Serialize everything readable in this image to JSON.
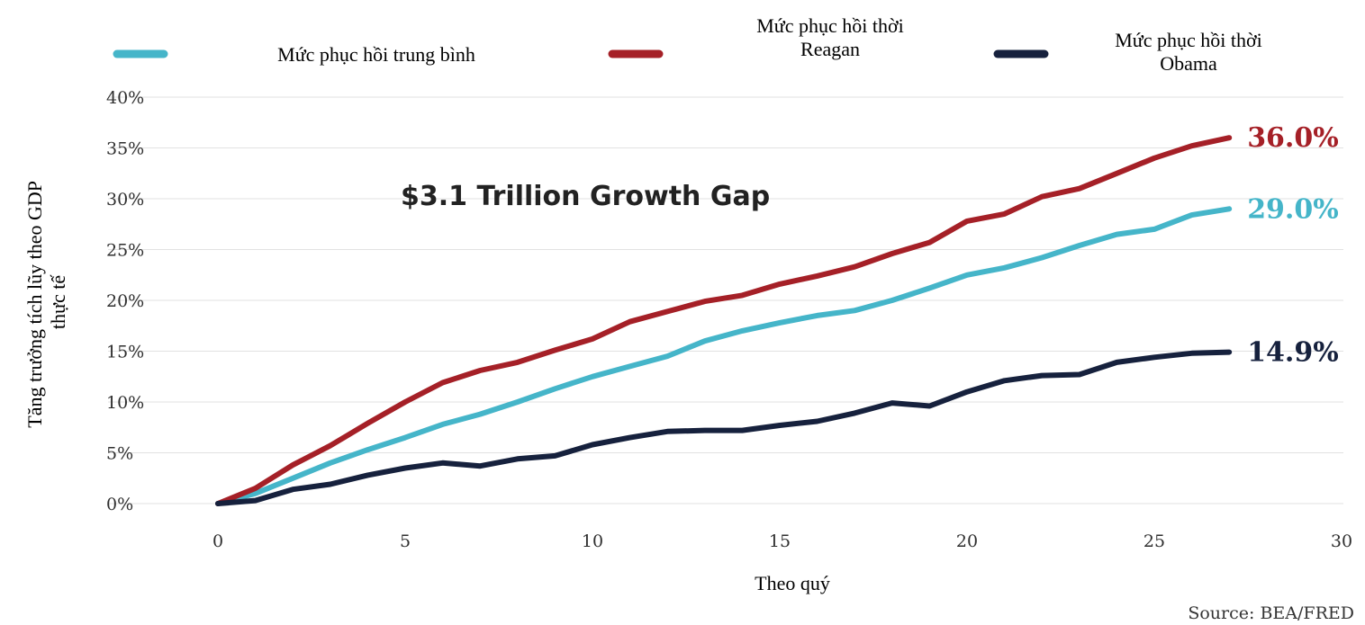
{
  "chart_data": {
    "type": "line",
    "annotation": "$3.1 Trillion Growth Gap",
    "xlabel": "Theo quý",
    "ylabel": [
      "Tăng trưởng tích lũy theo GDP",
      "thực tế"
    ],
    "source": "Source: BEA/FRED",
    "xlim": [
      0,
      30
    ],
    "ylim": [
      0,
      40
    ],
    "x_ticks": [
      0,
      5,
      10,
      15,
      20,
      25,
      30
    ],
    "x_tick_labels": [
      "0",
      "5",
      "10",
      "15",
      "20",
      "25",
      "30"
    ],
    "y_ticks": [
      0,
      5,
      10,
      15,
      20,
      25,
      30,
      35,
      40
    ],
    "y_tick_labels": [
      "0%",
      "5%",
      "10%",
      "15%",
      "20%",
      "25%",
      "30%",
      "35%",
      "40%"
    ],
    "grid": true,
    "legend_position": "top",
    "series": [
      {
        "name": [
          "Mức phục hồi trung bình"
        ],
        "color": "#45b5c9",
        "end_label": "29.0%",
        "x": [
          0,
          1,
          2,
          3,
          4,
          5,
          6,
          7,
          8,
          9,
          10,
          11,
          12,
          13,
          14,
          15,
          16,
          17,
          18,
          19,
          20,
          21,
          22,
          23,
          24,
          25,
          26,
          27
        ],
        "y": [
          0,
          1.0,
          2.5,
          4.0,
          5.3,
          6.5,
          7.8,
          8.8,
          10.0,
          11.3,
          12.5,
          13.5,
          14.5,
          16.0,
          17.0,
          17.8,
          18.5,
          19.0,
          20.0,
          21.2,
          22.5,
          23.2,
          24.2,
          25.4,
          26.5,
          27.0,
          28.4,
          29.0
        ]
      },
      {
        "name": [
          "Mức phục hồi thời",
          "Reagan"
        ],
        "color": "#a52027",
        "end_label": "36.0%",
        "x": [
          0,
          1,
          2,
          3,
          4,
          5,
          6,
          7,
          8,
          9,
          10,
          11,
          12,
          13,
          14,
          15,
          16,
          17,
          18,
          19,
          20,
          21,
          22,
          23,
          24,
          25,
          26,
          27
        ],
        "y": [
          0,
          1.5,
          3.8,
          5.7,
          7.9,
          10.0,
          11.9,
          13.1,
          13.9,
          15.1,
          16.2,
          17.9,
          18.9,
          19.9,
          20.5,
          21.6,
          22.4,
          23.3,
          24.6,
          25.7,
          27.8,
          28.5,
          30.2,
          31.0,
          32.5,
          34.0,
          35.2,
          36.0
        ]
      },
      {
        "name": [
          "Mức phục hồi thời",
          "Obama"
        ],
        "color": "#16213d",
        "end_label": "14.9%",
        "x": [
          0,
          1,
          2,
          3,
          4,
          5,
          6,
          7,
          8,
          9,
          10,
          11,
          12,
          13,
          14,
          15,
          16,
          17,
          18,
          19,
          20,
          21,
          22,
          23,
          24,
          25,
          26,
          27
        ],
        "y": [
          0,
          0.3,
          1.4,
          1.9,
          2.8,
          3.5,
          4.0,
          3.7,
          4.4,
          4.7,
          5.8,
          6.5,
          7.1,
          7.2,
          7.2,
          7.7,
          8.1,
          8.9,
          9.9,
          9.6,
          11.0,
          12.1,
          12.6,
          12.7,
          13.9,
          14.4,
          14.8,
          14.9
        ]
      }
    ]
  }
}
